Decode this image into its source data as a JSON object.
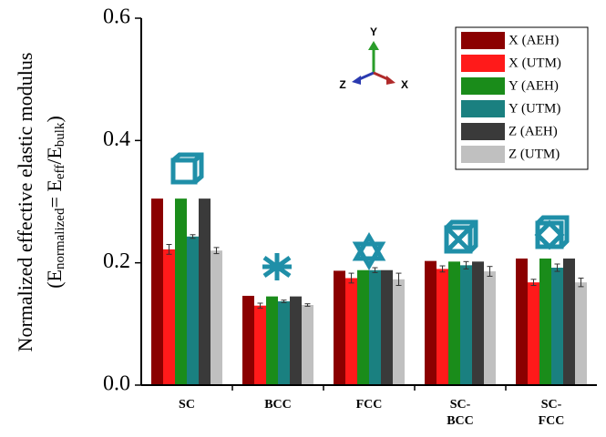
{
  "chart_data": {
    "type": "bar",
    "ylabel": "Normalized effective elastic modulus",
    "ylabel_line2": [
      "(E",
      "normalized",
      "= E",
      "eff",
      "/E",
      "bulk",
      ")"
    ],
    "axis_triad": {
      "y": "Y",
      "z": "Z",
      "x": "X"
    },
    "categories": [
      "SC",
      "BCC",
      "FCC",
      "SC-BCC",
      "SC-FCC"
    ],
    "series": [
      {
        "name": "X (AEH)",
        "color": "#8b0000",
        "values": [
          0.305,
          0.146,
          0.187,
          0.203,
          0.207
        ]
      },
      {
        "name": "X (UTM)",
        "color": "#ff1a1a",
        "values": [
          0.222,
          0.13,
          0.175,
          0.19,
          0.168
        ],
        "errors": [
          0.008,
          0.004,
          0.008,
          0.005,
          0.005
        ]
      },
      {
        "name": "Y (AEH)",
        "color": "#1a8c1a",
        "values": [
          0.305,
          0.145,
          0.188,
          0.202,
          0.207
        ]
      },
      {
        "name": "Y (UTM)",
        "color": "#1a8080",
        "values": [
          0.243,
          0.137,
          0.188,
          0.196,
          0.192
        ],
        "errors": [
          0.003,
          0.002,
          0.004,
          0.006,
          0.006
        ]
      },
      {
        "name": "Z (AEH)",
        "color": "#3a3a3a",
        "values": [
          0.305,
          0.145,
          0.188,
          0.202,
          0.207
        ]
      },
      {
        "name": "Z (UTM)",
        "color": "#c0c0c0",
        "values": [
          0.22,
          0.131,
          0.173,
          0.186,
          0.168
        ],
        "errors": [
          0.005,
          0.002,
          0.01,
          0.008,
          0.007
        ]
      }
    ],
    "ylim": [
      0,
      0.6
    ],
    "yticks": [
      {
        "value": 0,
        "label": "0.0"
      },
      0.2,
      0.4,
      0.6
    ],
    "legend": "top-right"
  }
}
